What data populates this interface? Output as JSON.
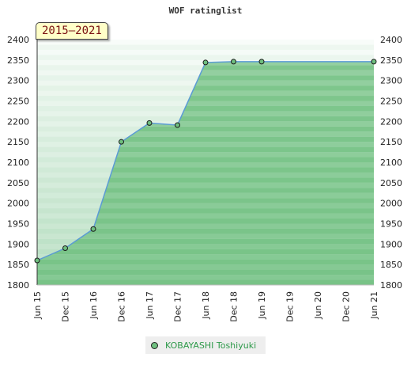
{
  "chart_data": {
    "type": "area",
    "title": "WOF ratinglist",
    "period_label": "2015–2021",
    "x_ticks": [
      "Jun 15",
      "Dec 15",
      "Jun 16",
      "Dec 16",
      "Jun 17",
      "Dec 17",
      "Jun 18",
      "Dec 18",
      "Jun 19",
      "Dec 19",
      "Jun 20",
      "Dec 20",
      "Jun 21"
    ],
    "y_ticks": [
      "1800",
      "1850",
      "1900",
      "1950",
      "2000",
      "2050",
      "2100",
      "2150",
      "2200",
      "2250",
      "2300",
      "2350",
      "2400"
    ],
    "ylim": [
      1800,
      2400
    ],
    "grid": true,
    "legend_position": "bottom",
    "series": [
      {
        "name": "KOBAYASHI Toshiyuki",
        "color": "#6fbf7f",
        "line_color": "#5b9bd5",
        "points": [
          {
            "x": "Jun 15",
            "y": 1860
          },
          {
            "x": "Dec 15",
            "y": 1890
          },
          {
            "x": "Jun 16",
            "y": 1937
          },
          {
            "x": "Dec 16",
            "y": 2150
          },
          {
            "x": "Jun 17",
            "y": 2196
          },
          {
            "x": "Dec 17",
            "y": 2191
          },
          {
            "x": "Jun 18",
            "y": 2344
          },
          {
            "x": "Dec 18",
            "y": 2346
          },
          {
            "x": "Jun 19",
            "y": 2346
          },
          {
            "x": "Jun 21",
            "y": 2346
          }
        ]
      }
    ]
  }
}
